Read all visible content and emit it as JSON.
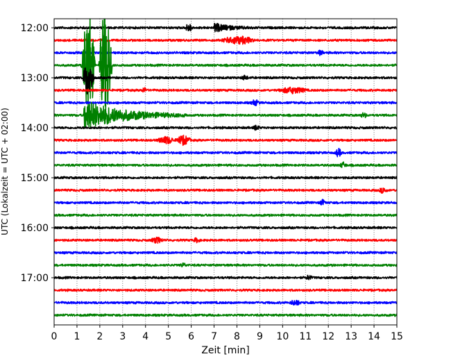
{
  "chart_data": {
    "type": "line",
    "title": "",
    "xlabel": "Zeit  [min]",
    "ylabel": "UTC (Lokalzeit = UTC + 02:00)",
    "xlim": [
      0,
      15
    ],
    "x_ticks": [
      0,
      1,
      2,
      3,
      4,
      5,
      6,
      7,
      8,
      9,
      10,
      11,
      12,
      13,
      14,
      15
    ],
    "x_tick_labels": [
      "0",
      "1",
      "2",
      "3",
      "4",
      "5",
      "6",
      "7",
      "8",
      "9",
      "10",
      "11",
      "12",
      "13",
      "14",
      "15"
    ],
    "y_ticks": [
      "12:00",
      "13:00",
      "14:00",
      "15:00",
      "16:00",
      "17:00"
    ],
    "grid": "vertical dotted",
    "trace_interval_minutes": 15,
    "trace_colors": [
      "#000000",
      "#ff0000",
      "#0000ff",
      "#008000"
    ],
    "traces": [
      {
        "start": "12:00",
        "color": "#000000",
        "events": [
          {
            "t": 5.7,
            "amp": 0.5,
            "dur": 0.4
          },
          {
            "t": 7.0,
            "amp": 0.65,
            "dur": 1.9
          }
        ]
      },
      {
        "start": "12:15",
        "color": "#ff0000",
        "events": [
          {
            "t": 7.3,
            "amp": 0.55,
            "dur": 1.5
          }
        ]
      },
      {
        "start": "12:30",
        "color": "#0000ff",
        "events": [
          {
            "t": 11.5,
            "amp": 0.3,
            "dur": 0.3
          }
        ]
      },
      {
        "start": "12:45",
        "color": "#008000",
        "events": [
          {
            "t": 1.2,
            "amp": 9.0,
            "dur": 0.6
          },
          {
            "t": 1.95,
            "amp": 9.0,
            "dur": 0.6
          }
        ]
      },
      {
        "start": "13:00",
        "color": "#000000",
        "events": [
          {
            "t": 1.25,
            "amp": 3.0,
            "dur": 0.5
          },
          {
            "t": 8.2,
            "amp": 0.3,
            "dur": 0.3
          }
        ]
      },
      {
        "start": "13:15",
        "color": "#ff0000",
        "events": [
          {
            "t": 3.8,
            "amp": 0.3,
            "dur": 0.3
          },
          {
            "t": 9.8,
            "amp": 0.4,
            "dur": 1.3
          }
        ]
      },
      {
        "start": "13:30",
        "color": "#0000ff",
        "events": [
          {
            "t": 8.6,
            "amp": 0.35,
            "dur": 0.4
          }
        ]
      },
      {
        "start": "13:45",
        "color": "#008000",
        "events": [
          {
            "t": 1.3,
            "amp": 2.5,
            "dur": 4.5
          },
          {
            "t": 13.4,
            "amp": 0.3,
            "dur": 0.3
          }
        ]
      },
      {
        "start": "14:00",
        "color": "#000000",
        "events": [
          {
            "t": 8.7,
            "amp": 0.3,
            "dur": 0.3
          }
        ]
      },
      {
        "start": "14:15",
        "color": "#ff0000",
        "events": [
          {
            "t": 4.5,
            "amp": 0.5,
            "dur": 0.8
          },
          {
            "t": 5.3,
            "amp": 0.65,
            "dur": 0.7
          }
        ]
      },
      {
        "start": "14:30",
        "color": "#0000ff",
        "events": [
          {
            "t": 12.3,
            "amp": 0.55,
            "dur": 0.3
          }
        ]
      },
      {
        "start": "14:45",
        "color": "#008000",
        "events": [
          {
            "t": 12.5,
            "amp": 0.4,
            "dur": 0.3
          }
        ]
      },
      {
        "start": "15:00",
        "color": "#000000",
        "events": []
      },
      {
        "start": "15:15",
        "color": "#ff0000",
        "events": [
          {
            "t": 14.2,
            "amp": 0.35,
            "dur": 0.4
          }
        ]
      },
      {
        "start": "15:30",
        "color": "#0000ff",
        "events": [
          {
            "t": 11.6,
            "amp": 0.35,
            "dur": 0.3
          }
        ]
      },
      {
        "start": "15:45",
        "color": "#008000",
        "events": []
      },
      {
        "start": "16:00",
        "color": "#000000",
        "events": []
      },
      {
        "start": "16:15",
        "color": "#ff0000",
        "events": [
          {
            "t": 4.2,
            "amp": 0.35,
            "dur": 0.6
          },
          {
            "t": 6.1,
            "amp": 0.3,
            "dur": 0.3
          }
        ]
      },
      {
        "start": "16:30",
        "color": "#0000ff",
        "events": []
      },
      {
        "start": "16:45",
        "color": "#008000",
        "events": [
          {
            "t": 5.5,
            "amp": 0.25,
            "dur": 0.3
          }
        ]
      },
      {
        "start": "17:00",
        "color": "#000000",
        "events": [
          {
            "t": 11.0,
            "amp": 0.3,
            "dur": 0.3
          }
        ]
      },
      {
        "start": "17:15",
        "color": "#ff0000",
        "events": []
      },
      {
        "start": "17:30",
        "color": "#0000ff",
        "events": [
          {
            "t": 10.3,
            "amp": 0.35,
            "dur": 0.5
          }
        ]
      },
      {
        "start": "17:45",
        "color": "#008000",
        "events": []
      }
    ]
  }
}
